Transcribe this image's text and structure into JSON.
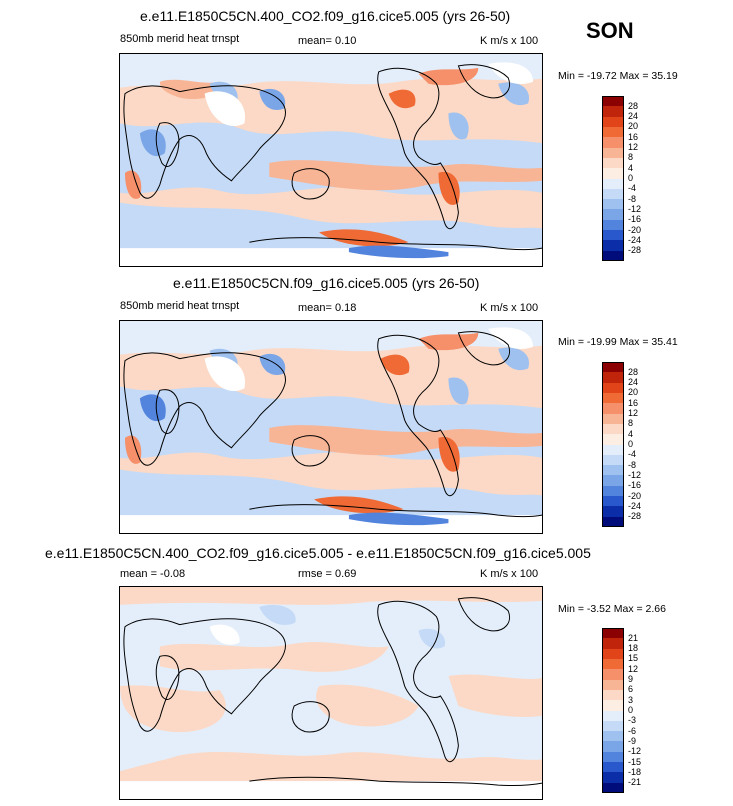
{
  "season": "SON",
  "panels": [
    {
      "title": "e.e11.E1850C5CN.400_CO2.f09_g16.cice5.005 (yrs 26-50)",
      "left_label": "850mb merid heat trnspt",
      "center_label": "mean=   0.10",
      "right_label": "K m/s x 100",
      "minmax": "Min = -19.72 Max =  35.19",
      "colorbar": {
        "labels": [
          "28",
          "24",
          "20",
          "16",
          "12",
          "8",
          "4",
          "0",
          "-4",
          "-8",
          "-12",
          "-16",
          "-20",
          "-24",
          "-28"
        ],
        "colors": [
          "#8b0000",
          "#c0240a",
          "#e04418",
          "#f06a35",
          "#f5906a",
          "#f8b596",
          "#fbd9c6",
          "#fdeee4",
          "#e4eefa",
          "#c4daf6",
          "#9fc1ef",
          "#7aa6e8",
          "#5284dd",
          "#2858cc",
          "#0c2da8",
          "#000c7a"
        ]
      }
    },
    {
      "title": "e.e11.E1850C5CN.f09_g16.cice5.005 (yrs 26-50)",
      "left_label": "850mb merid heat trnspt",
      "center_label": "mean=   0.18",
      "right_label": "K m/s x 100",
      "minmax": "Min = -19.99 Max =  35.41",
      "colorbar": {
        "labels": [
          "28",
          "24",
          "20",
          "16",
          "12",
          "8",
          "4",
          "0",
          "-4",
          "-8",
          "-12",
          "-16",
          "-20",
          "-24",
          "-28"
        ],
        "colors": [
          "#8b0000",
          "#c0240a",
          "#e04418",
          "#f06a35",
          "#f5906a",
          "#f8b596",
          "#fbd9c6",
          "#fdeee4",
          "#e4eefa",
          "#c4daf6",
          "#9fc1ef",
          "#7aa6e8",
          "#5284dd",
          "#2858cc",
          "#0c2da8",
          "#000c7a"
        ]
      }
    },
    {
      "title": "e.e11.E1850C5CN.400_CO2.f09_g16.cice5.005 - e.e11.E1850C5CN.f09_g16.cice5.005",
      "left_label": "mean =  -0.08",
      "center_label": "rmse =   0.69",
      "right_label": "K m/s x 100",
      "minmax": "Min =  -3.52 Max =   2.66",
      "colorbar": {
        "labels": [
          "21",
          "18",
          "15",
          "12",
          "9",
          "6",
          "3",
          "0",
          "-3",
          "-6",
          "-9",
          "-12",
          "-15",
          "-18",
          "-21"
        ],
        "colors": [
          "#8b0000",
          "#c0240a",
          "#e04418",
          "#f06a35",
          "#f5906a",
          "#f8b596",
          "#fbd9c6",
          "#fdeee4",
          "#e4eefa",
          "#c4daf6",
          "#9fc1ef",
          "#7aa6e8",
          "#5284dd",
          "#2858cc",
          "#0c2da8",
          "#000c7a"
        ]
      }
    }
  ]
}
